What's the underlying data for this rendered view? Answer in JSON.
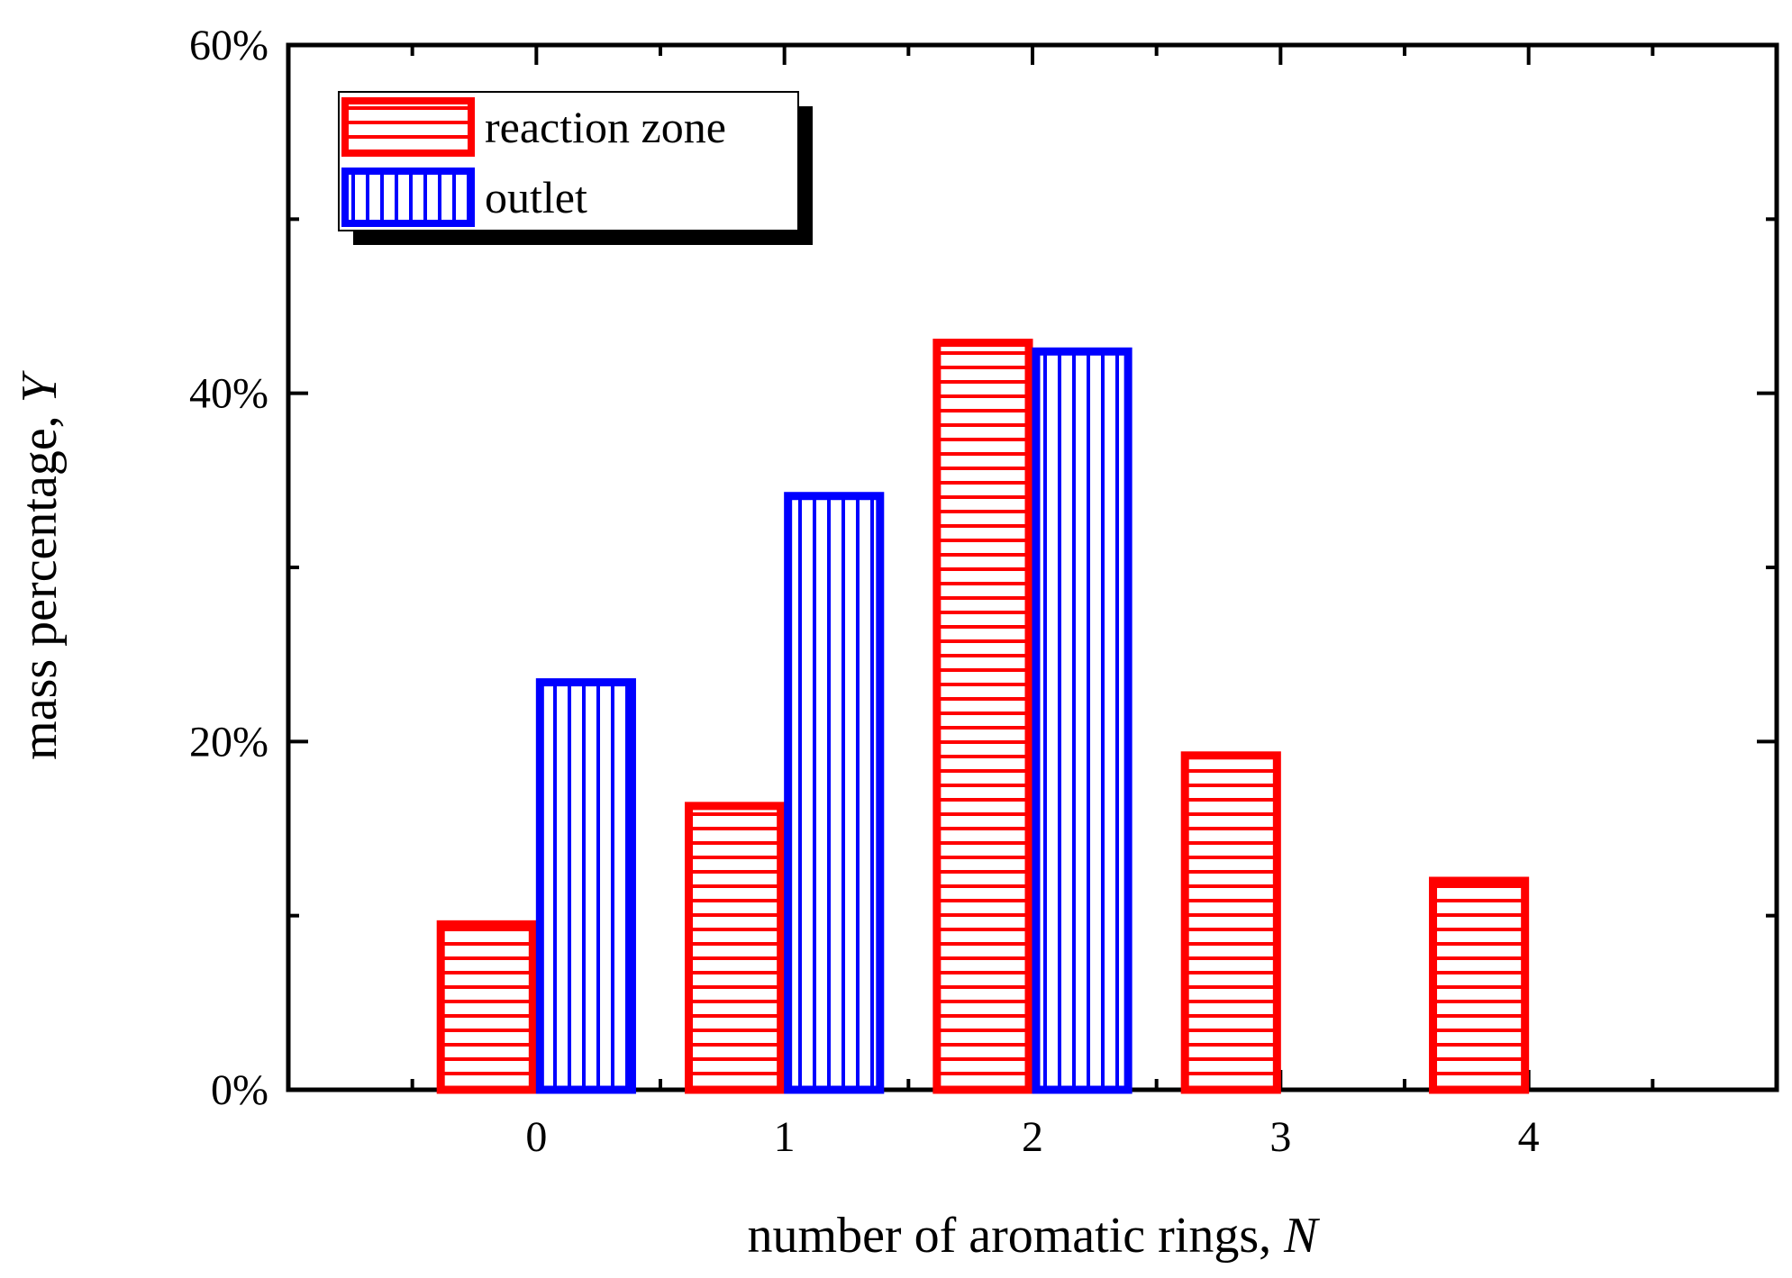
{
  "chart_data": {
    "type": "bar",
    "title": "",
    "xlabel_text": "number of aromatic rings, ",
    "xlabel_var": "N",
    "ylabel_text": "mass percentage, ",
    "ylabel_var": "Y",
    "categories": [
      "0",
      "1",
      "2",
      "3",
      "4"
    ],
    "x_range": [
      -1,
      5
    ],
    "ylim": [
      0,
      60
    ],
    "y_ticks": [
      0,
      20,
      40,
      60
    ],
    "y_tick_labels": [
      "0%",
      "20%",
      "40%",
      "60%"
    ],
    "y_minor_ticks": [
      10,
      30,
      50
    ],
    "series": [
      {
        "name": "reaction zone",
        "color": "#ff0000",
        "pattern": "horizontal-lines",
        "values": [
          9.5,
          16.3,
          42.9,
          19.2,
          12.0
        ]
      },
      {
        "name": "outlet",
        "color": "#0000ff",
        "pattern": "vertical-lines",
        "values": [
          23.4,
          34.1,
          42.4,
          0,
          0
        ]
      }
    ],
    "legend_position": "top-left",
    "grid": false
  }
}
